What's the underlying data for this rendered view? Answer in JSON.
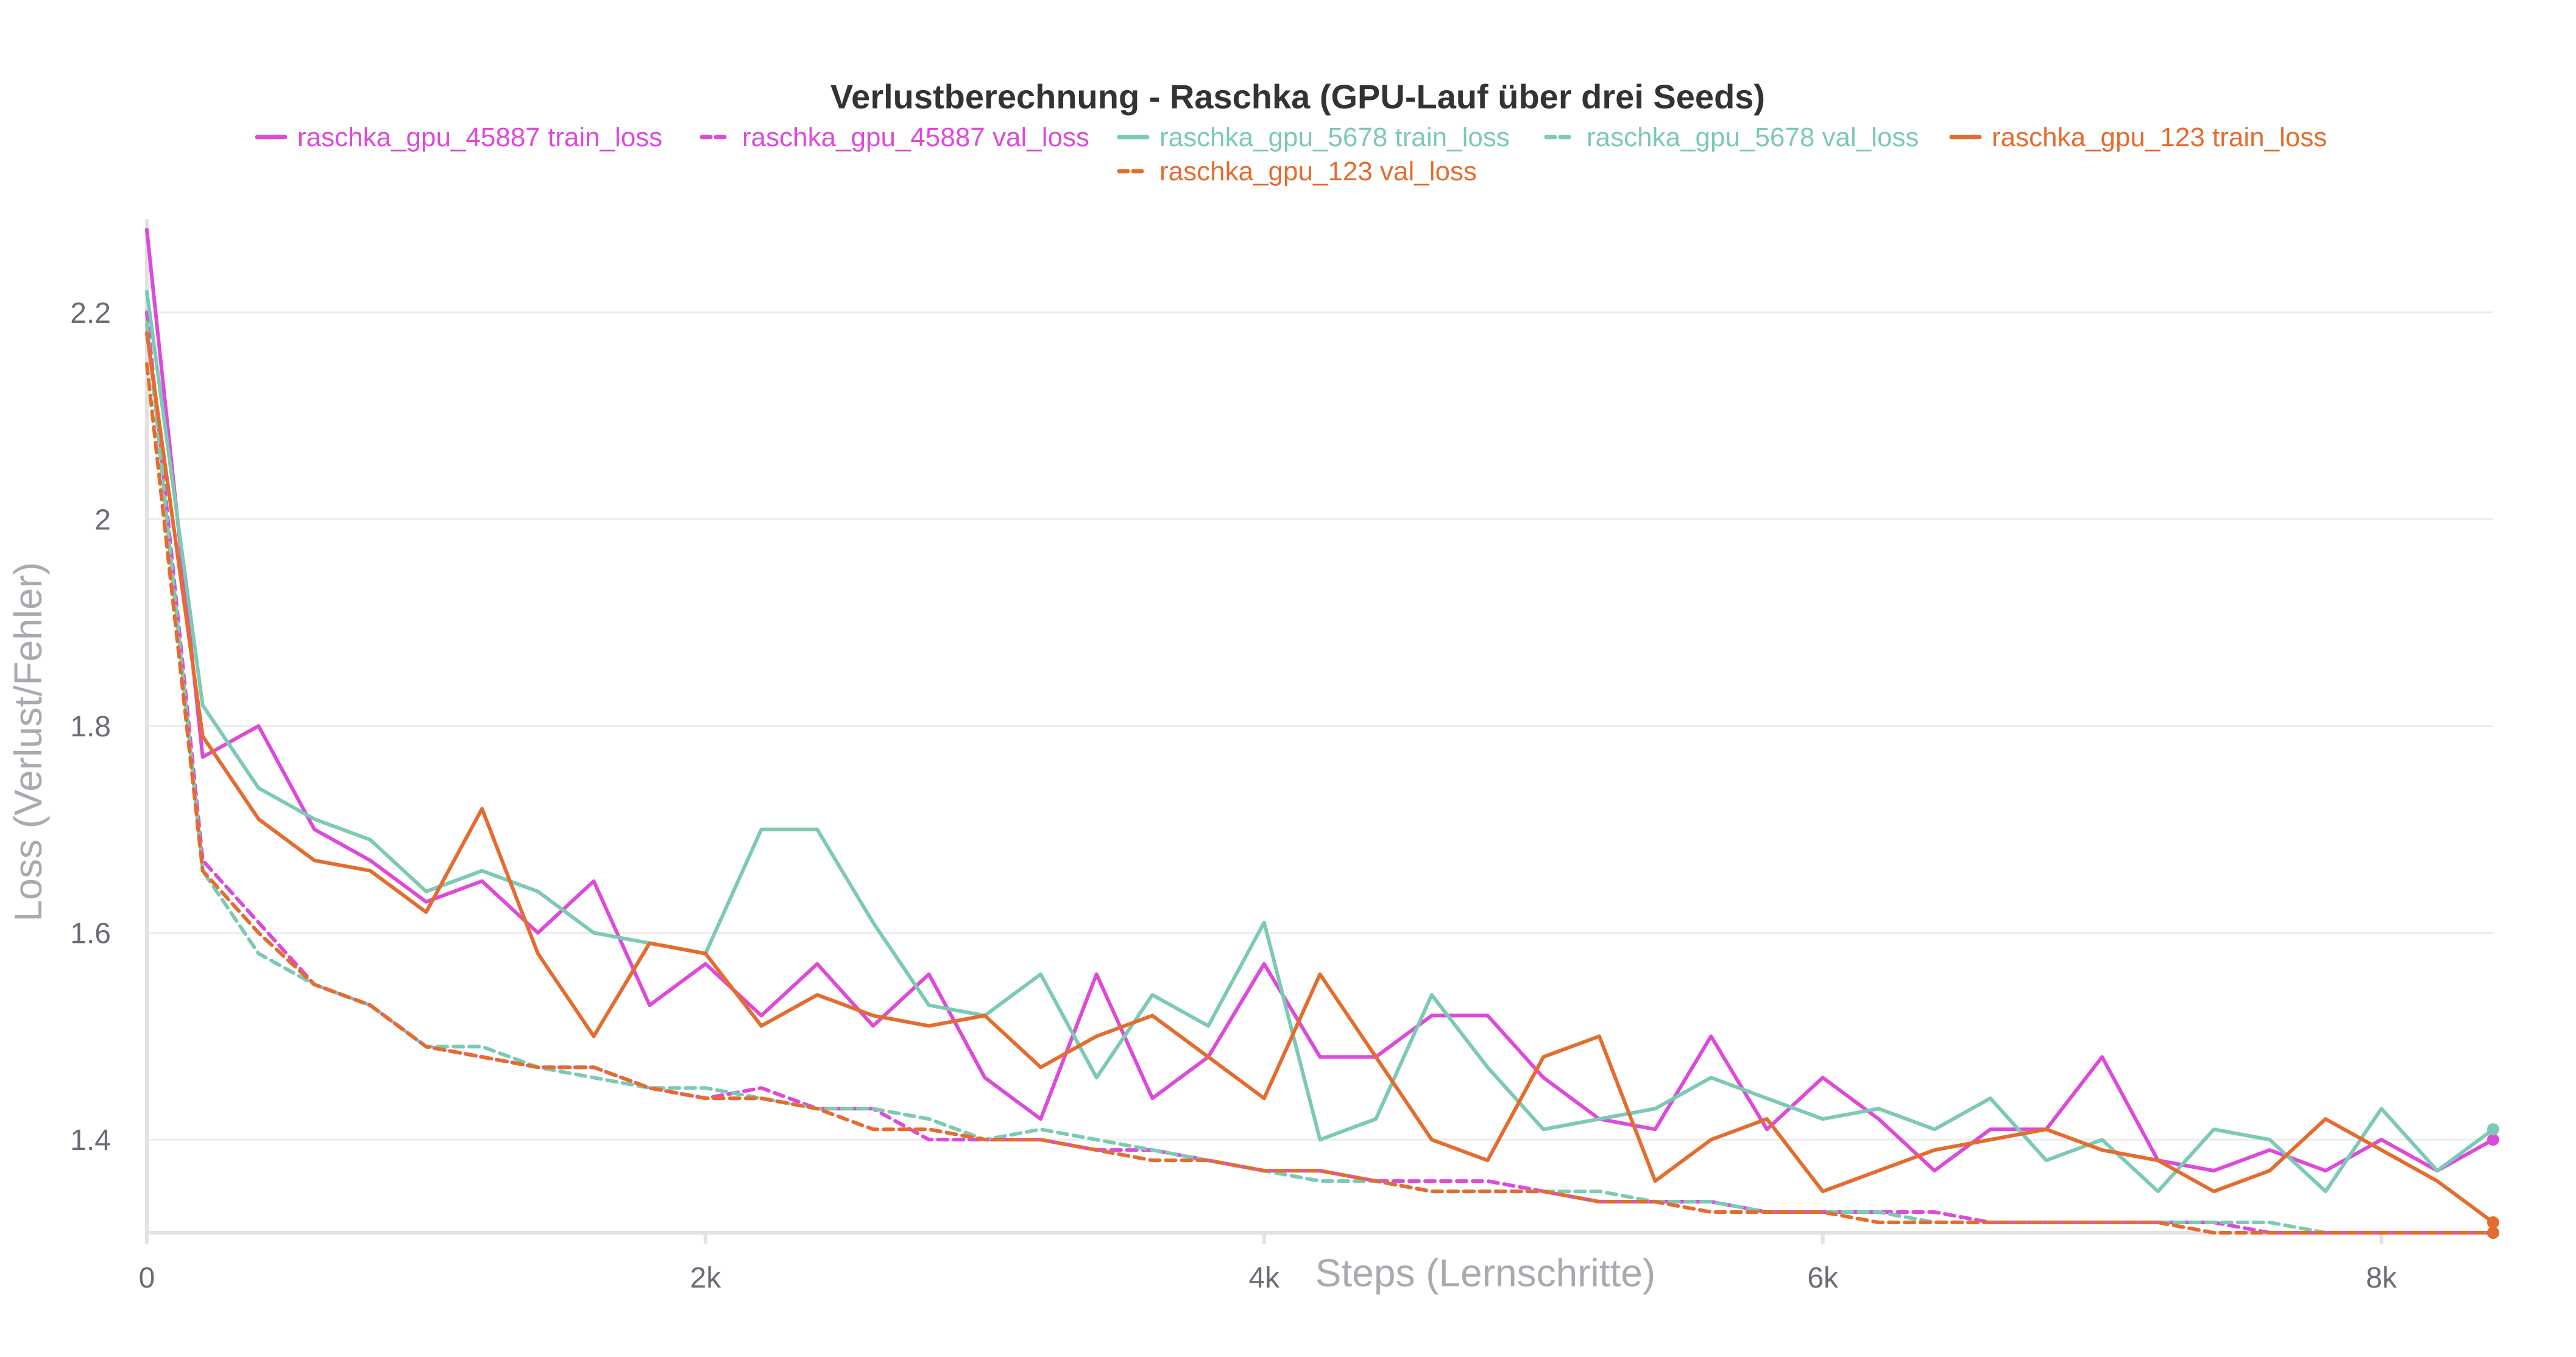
{
  "chart_data": {
    "type": "line",
    "title": "Verlustberechnung - Raschka (GPU-Lauf über drei Seeds)",
    "xlabel": "Steps (Lernschritte)",
    "ylabel": "Loss (Verlust/Fehler)",
    "xlim": [
      0,
      8400
    ],
    "ylim": [
      1.31,
      2.29
    ],
    "x_ticks": [
      {
        "value": 0,
        "label": "0"
      },
      {
        "value": 2000,
        "label": "2k"
      },
      {
        "value": 4000,
        "label": "4k"
      },
      {
        "value": 6000,
        "label": "6k"
      },
      {
        "value": 8000,
        "label": "8k"
      }
    ],
    "y_ticks": [
      {
        "value": 1.4,
        "label": "1.4"
      },
      {
        "value": 1.6,
        "label": "1.6"
      },
      {
        "value": 1.8,
        "label": "1.8"
      },
      {
        "value": 2.0,
        "label": "2"
      },
      {
        "value": 2.2,
        "label": "2.2"
      }
    ],
    "grid": true,
    "legend_position": "top",
    "x": [
      0,
      200,
      400,
      600,
      800,
      1000,
      1200,
      1400,
      1600,
      1800,
      2000,
      2200,
      2400,
      2600,
      2800,
      3000,
      3200,
      3400,
      3600,
      3800,
      4000,
      4200,
      4400,
      4600,
      4800,
      5000,
      5200,
      5400,
      5600,
      5800,
      6000,
      6200,
      6400,
      6600,
      6800,
      7000,
      7200,
      7400,
      7600,
      7800,
      8000,
      8200,
      8400
    ],
    "series": [
      {
        "name": "raschka_gpu_45887 train_loss",
        "color": "#dd4ad9",
        "dash": false,
        "values": [
          2.28,
          1.77,
          1.8,
          1.7,
          1.67,
          1.63,
          1.65,
          1.6,
          1.65,
          1.53,
          1.57,
          1.52,
          1.57,
          1.51,
          1.56,
          1.46,
          1.42,
          1.56,
          1.44,
          1.48,
          1.57,
          1.48,
          1.48,
          1.52,
          1.52,
          1.46,
          1.42,
          1.41,
          1.5,
          1.41,
          1.46,
          1.42,
          1.37,
          1.41,
          1.41,
          1.48,
          1.38,
          1.37,
          1.39,
          1.37,
          1.4,
          1.37,
          1.4
        ]
      },
      {
        "name": "raschka_gpu_45887 val_loss",
        "color": "#dd4ad9",
        "dash": true,
        "values": [
          2.2,
          1.67,
          1.61,
          1.55,
          1.53,
          1.49,
          1.48,
          1.47,
          1.47,
          1.45,
          1.44,
          1.45,
          1.43,
          1.43,
          1.4,
          1.4,
          1.4,
          1.39,
          1.39,
          1.38,
          1.37,
          1.37,
          1.36,
          1.36,
          1.36,
          1.35,
          1.34,
          1.34,
          1.34,
          1.33,
          1.33,
          1.33,
          1.33,
          1.32,
          1.32,
          1.32,
          1.32,
          1.32,
          1.31,
          1.31,
          1.31,
          1.31,
          1.31
        ]
      },
      {
        "name": "raschka_gpu_5678 train_loss",
        "color": "#7cc9b5",
        "dash": false,
        "values": [
          2.22,
          1.82,
          1.74,
          1.71,
          1.69,
          1.64,
          1.66,
          1.64,
          1.6,
          1.59,
          1.58,
          1.7,
          1.7,
          1.61,
          1.53,
          1.52,
          1.56,
          1.46,
          1.54,
          1.51,
          1.61,
          1.4,
          1.42,
          1.54,
          1.47,
          1.41,
          1.42,
          1.43,
          1.46,
          1.44,
          1.42,
          1.43,
          1.41,
          1.44,
          1.38,
          1.4,
          1.35,
          1.41,
          1.4,
          1.35,
          1.43,
          1.37,
          1.41
        ]
      },
      {
        "name": "raschka_gpu_5678 val_loss",
        "color": "#7cc9b5",
        "dash": true,
        "values": [
          2.19,
          1.66,
          1.58,
          1.55,
          1.53,
          1.49,
          1.49,
          1.47,
          1.46,
          1.45,
          1.45,
          1.44,
          1.43,
          1.43,
          1.42,
          1.4,
          1.41,
          1.4,
          1.39,
          1.38,
          1.37,
          1.36,
          1.36,
          1.35,
          1.35,
          1.35,
          1.35,
          1.34,
          1.34,
          1.33,
          1.33,
          1.33,
          1.32,
          1.32,
          1.32,
          1.32,
          1.32,
          1.32,
          1.32,
          1.31,
          1.31,
          1.31,
          1.31
        ]
      },
      {
        "name": "raschka_gpu_123 train_loss",
        "color": "#e46c2e",
        "dash": false,
        "values": [
          2.18,
          1.79,
          1.71,
          1.67,
          1.66,
          1.62,
          1.72,
          1.58,
          1.5,
          1.59,
          1.58,
          1.51,
          1.54,
          1.52,
          1.51,
          1.52,
          1.47,
          1.5,
          1.52,
          1.48,
          1.44,
          1.56,
          1.48,
          1.4,
          1.38,
          1.48,
          1.5,
          1.36,
          1.4,
          1.42,
          1.35,
          1.37,
          1.39,
          1.4,
          1.41,
          1.39,
          1.38,
          1.35,
          1.37,
          1.42,
          1.39,
          1.36,
          1.32
        ]
      },
      {
        "name": "raschka_gpu_123 val_loss",
        "color": "#e46c2e",
        "dash": true,
        "values": [
          2.15,
          1.66,
          1.6,
          1.55,
          1.53,
          1.49,
          1.48,
          1.47,
          1.47,
          1.45,
          1.44,
          1.44,
          1.43,
          1.41,
          1.41,
          1.4,
          1.4,
          1.39,
          1.38,
          1.38,
          1.37,
          1.37,
          1.36,
          1.35,
          1.35,
          1.35,
          1.34,
          1.34,
          1.33,
          1.33,
          1.33,
          1.32,
          1.32,
          1.32,
          1.32,
          1.32,
          1.32,
          1.31,
          1.31,
          1.31,
          1.31,
          1.31,
          1.31
        ]
      }
    ]
  }
}
